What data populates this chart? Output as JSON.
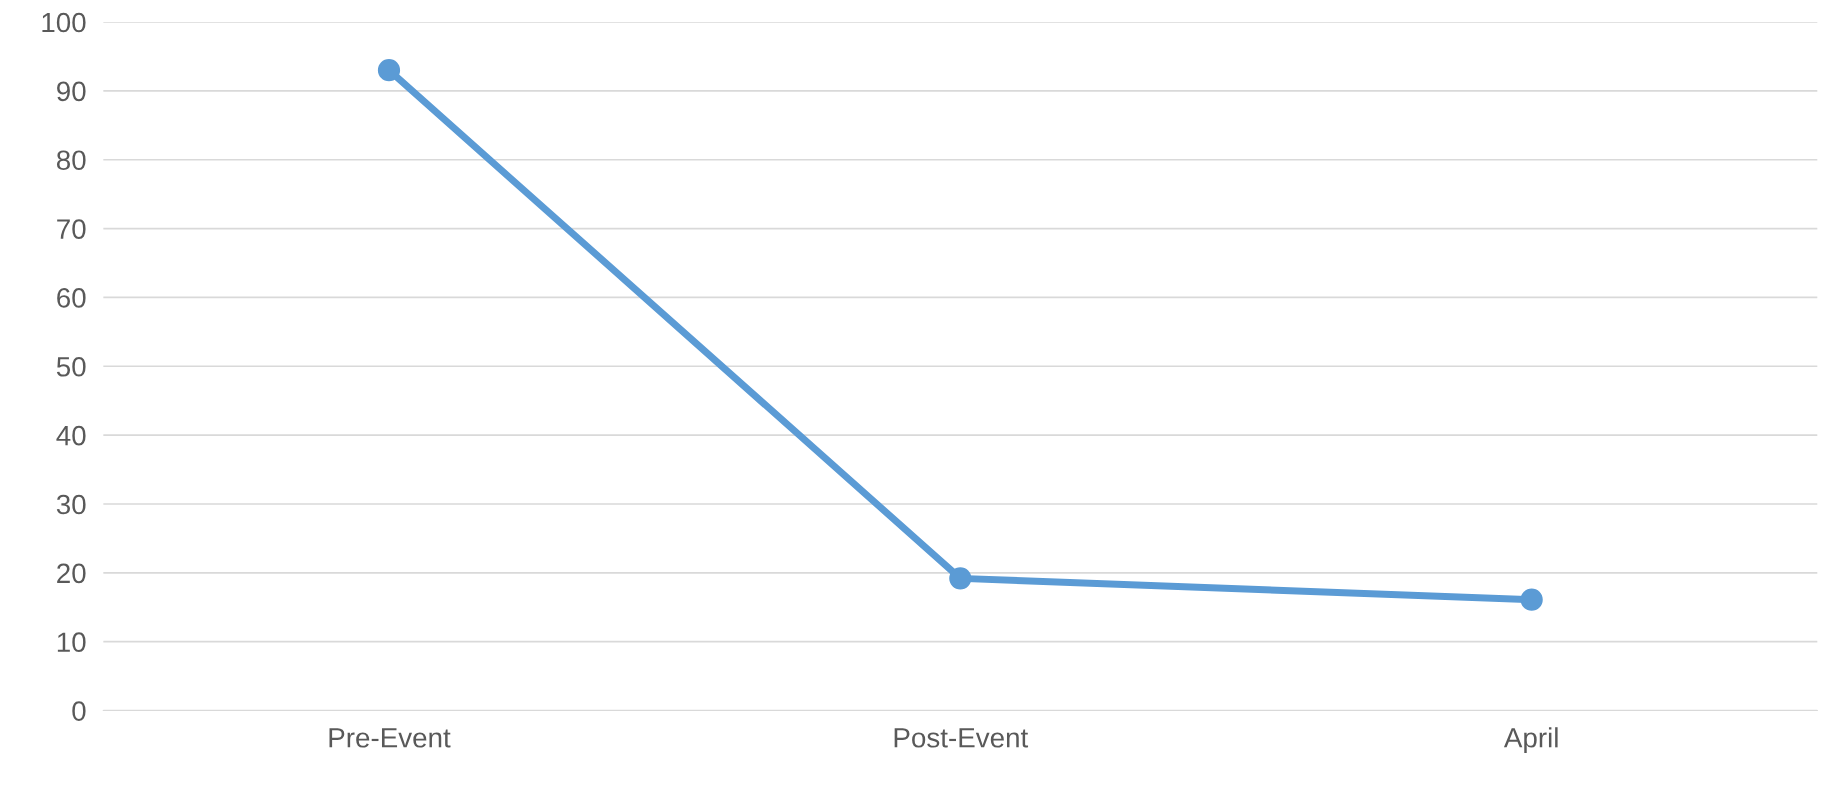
{
  "chart_data": {
    "type": "line",
    "categories": [
      "Pre-Event",
      "Post-Event",
      "April"
    ],
    "series": [
      {
        "color": "#5b9bd5",
        "values": [
          93,
          19.2,
          16.1
        ]
      }
    ],
    "ylim": [
      0,
      100
    ],
    "yticks": [
      0,
      10,
      20,
      30,
      40,
      50,
      60,
      70,
      80,
      90,
      100
    ],
    "grid": "y",
    "marker": "circle",
    "line_style": "solid"
  }
}
